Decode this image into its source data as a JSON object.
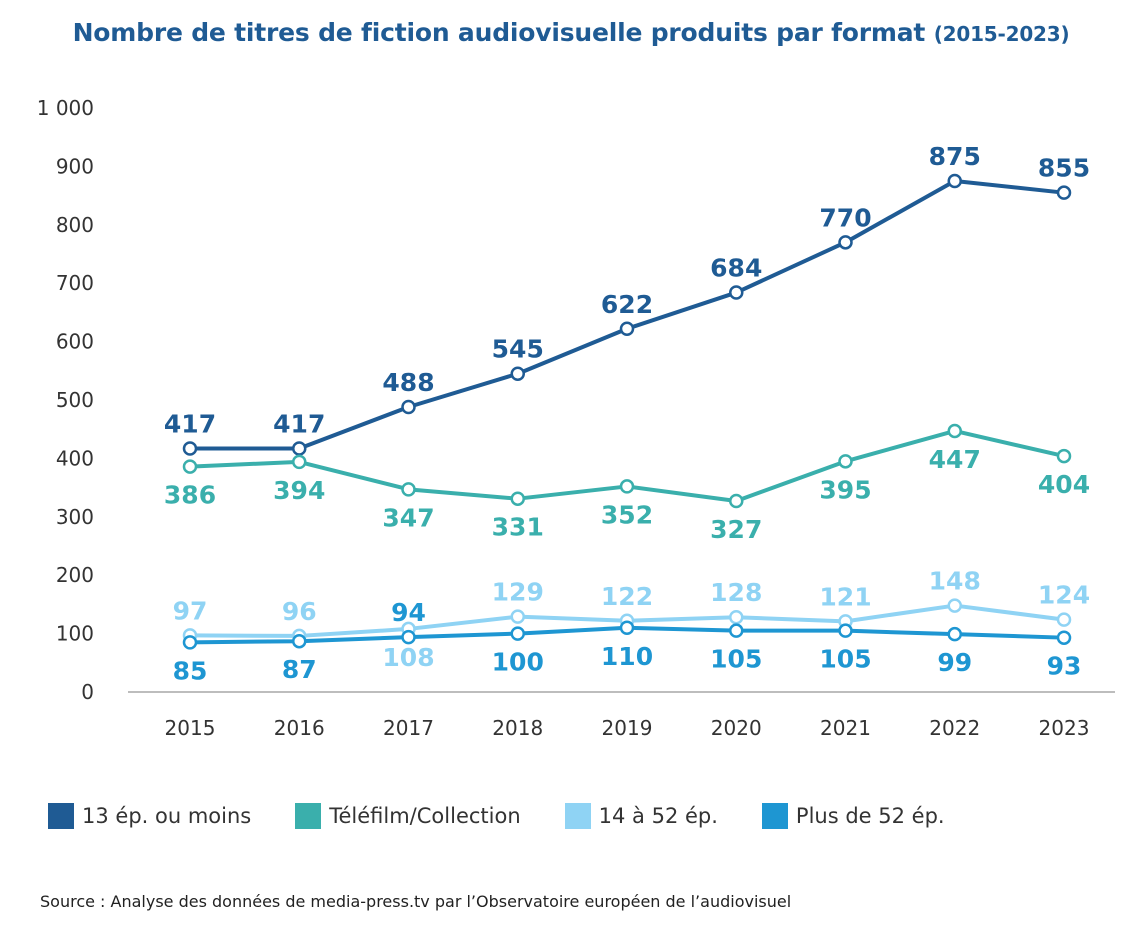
{
  "title": {
    "main": "Nombre de titres de fiction audiovisuelle produits par format",
    "years": "(2015-2023)"
  },
  "source": "Source : Analyse des données de media-press.tv par l’Observatoire européen de l’audiovisuel",
  "chart_data": {
    "type": "line",
    "title": "Nombre de titres de fiction audiovisuelle produits par format (2015-2023)",
    "x": [
      "2015",
      "2016",
      "2017",
      "2018",
      "2019",
      "2020",
      "2021",
      "2022",
      "2023"
    ],
    "ylim": [
      0,
      1000
    ],
    "yticks": [
      0,
      100,
      200,
      300,
      400,
      500,
      600,
      700,
      800,
      900,
      1000
    ],
    "ytick_labels": [
      "0",
      "100",
      "200",
      "300",
      "400",
      "500",
      "600",
      "700",
      "800",
      "900",
      "1 000"
    ],
    "grid": false,
    "legend_position": "bottom-left",
    "series": [
      {
        "name": "13 ép. ou moins",
        "color": "#1f5b94",
        "values": [
          417,
          417,
          488,
          545,
          622,
          684,
          770,
          875,
          855
        ],
        "label_position": "above"
      },
      {
        "name": "Téléfilm/Collection",
        "color": "#3aafac",
        "values": [
          386,
          394,
          347,
          331,
          352,
          327,
          395,
          447,
          404
        ],
        "label_position": "below"
      },
      {
        "name": "14 à 52 ép.",
        "color": "#8fd3f4",
        "values": [
          97,
          96,
          108,
          129,
          122,
          128,
          121,
          148,
          124
        ],
        "label_position": "mixed"
      },
      {
        "name": "Plus de 52 ép.",
        "color": "#1e96d2",
        "values": [
          85,
          87,
          94,
          100,
          110,
          105,
          105,
          99,
          93
        ],
        "label_position": "mixed"
      }
    ]
  }
}
